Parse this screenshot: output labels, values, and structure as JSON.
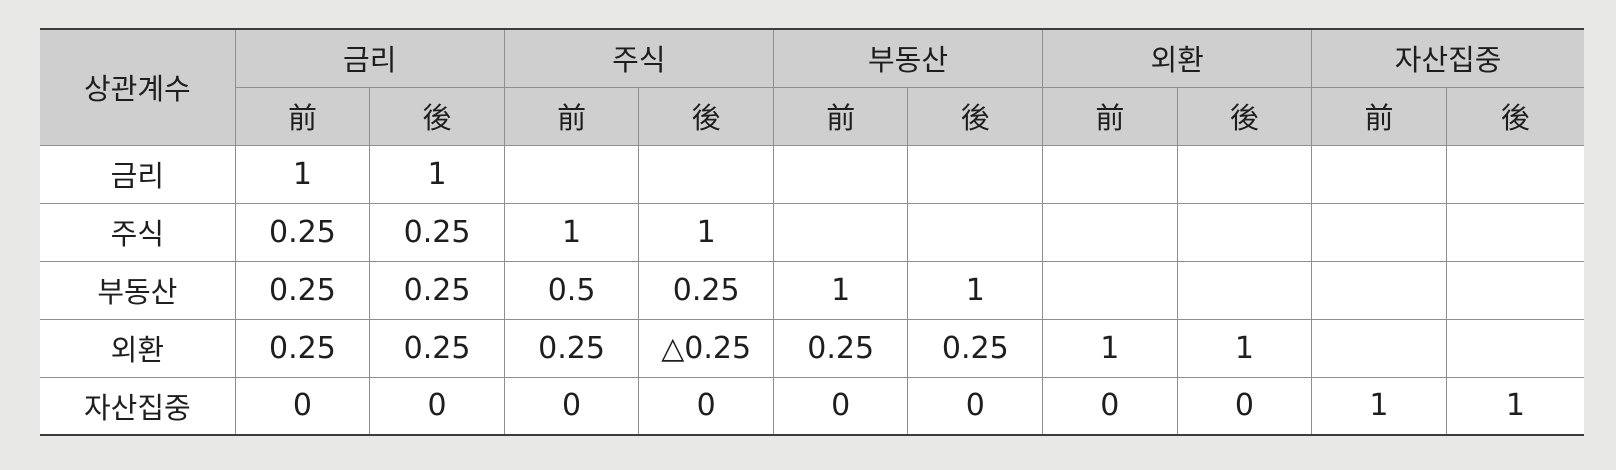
{
  "table": {
    "corner_label": "상관계수",
    "groups": [
      "금리",
      "주식",
      "부동산",
      "외환",
      "자산집중"
    ],
    "subheaders": [
      "前",
      "後"
    ],
    "rows": [
      {
        "label": "금리",
        "cells": [
          "1",
          "1",
          "",
          "",
          "",
          "",
          "",
          "",
          "",
          ""
        ]
      },
      {
        "label": "주식",
        "cells": [
          "0.25",
          "0.25",
          "1",
          "1",
          "",
          "",
          "",
          "",
          "",
          ""
        ]
      },
      {
        "label": "부동산",
        "cells": [
          "0.25",
          "0.25",
          "0.5",
          "0.25",
          "1",
          "1",
          "",
          "",
          "",
          ""
        ]
      },
      {
        "label": "외환",
        "cells": [
          "0.25",
          "0.25",
          "0.25",
          "△0.25",
          "0.25",
          "0.25",
          "1",
          "1",
          "",
          ""
        ]
      },
      {
        "label": "자산집중",
        "cells": [
          "0",
          "0",
          "0",
          "0",
          "0",
          "0",
          "0",
          "0",
          "1",
          "1"
        ]
      }
    ]
  }
}
